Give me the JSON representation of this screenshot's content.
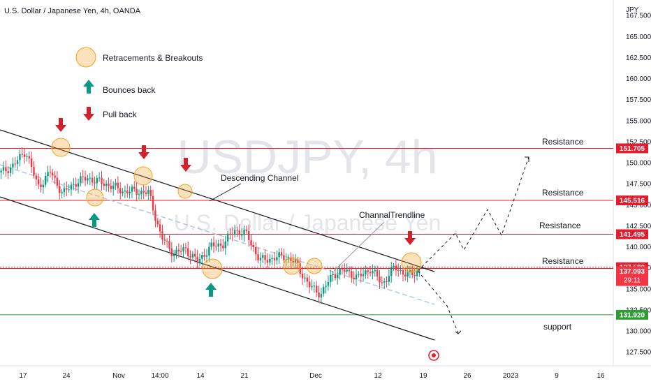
{
  "header": {
    "title": "U.S. Dollar / Japanese Yen, 4h, OANDA",
    "currency": "JPY"
  },
  "watermark": {
    "symbol": "USDJPY, 4h",
    "name": "U.S. Dollar / Japanese Yen"
  },
  "legend": {
    "items": [
      {
        "icon": "circle-icon",
        "label": "Retracements & Breakouts",
        "color": "#f5a020"
      },
      {
        "icon": "up-arrow-icon",
        "label": "Bounces back",
        "color": "#089981"
      },
      {
        "icon": "down-arrow-icon",
        "label": "Pull back",
        "color": "#d0212d"
      }
    ]
  },
  "annotations": {
    "descending_channel": "Descending Channel",
    "channel_trendline": "ChannalTrendline",
    "resistance": "Resistance",
    "support": "support"
  },
  "price_tags": {
    "r1": "151.705",
    "r2": "145.516",
    "r3": "141.495",
    "r4": "137.580",
    "last": "137.093",
    "countdown": "29:11",
    "s1": "131.920"
  },
  "colors": {
    "up": "#089981",
    "down": "#f23645",
    "resistance": "#e31c2e",
    "support": "#2f9c36",
    "highlight": "#f5a020",
    "channel": "#131722"
  },
  "chart_data": {
    "type": "candlestick",
    "title": "U.S. Dollar / Japanese Yen, 4h, OANDA",
    "ylabel": "JPY",
    "ylim": [
      126.0,
      168.5
    ],
    "y_ticks": [
      "127.500",
      "130.000",
      "132.500",
      "135.000",
      "137.500",
      "140.000",
      "142.500",
      "145.000",
      "147.500",
      "150.000",
      "152.500",
      "155.000",
      "157.500",
      "160.000",
      "162.500",
      "165.000",
      "167.500"
    ],
    "x_ticks": [
      "17",
      "24",
      "Nov",
      "14:00",
      "14",
      "21",
      "Dec",
      "12",
      "19",
      "26",
      "2023",
      "9",
      "16"
    ],
    "close_path": [
      {
        "date": "2022-10-17",
        "close": 148.8
      },
      {
        "date": "2022-10-19",
        "close": 149.7
      },
      {
        "date": "2022-10-21",
        "close": 151.4
      },
      {
        "date": "2022-10-21",
        "close": 147.1
      },
      {
        "date": "2022-10-24",
        "close": 148.9
      },
      {
        "date": "2022-10-26",
        "close": 146.3
      },
      {
        "date": "2022-10-28",
        "close": 147.6
      },
      {
        "date": "2022-11-01",
        "close": 148.2
      },
      {
        "date": "2022-11-02",
        "close": 147.7
      },
      {
        "date": "2022-11-03",
        "close": 147.2
      },
      {
        "date": "2022-11-04",
        "close": 146.6
      },
      {
        "date": "2022-11-07",
        "close": 146.6
      },
      {
        "date": "2022-11-09",
        "close": 146.4
      },
      {
        "date": "2022-11-10",
        "close": 141.2
      },
      {
        "date": "2022-11-11",
        "close": 139.2
      },
      {
        "date": "2022-11-14",
        "close": 139.7
      },
      {
        "date": "2022-11-15",
        "close": 138.2
      },
      {
        "date": "2022-11-16",
        "close": 140.0
      },
      {
        "date": "2022-11-18",
        "close": 140.3
      },
      {
        "date": "2022-11-21",
        "close": 142.0
      },
      {
        "date": "2022-11-22",
        "close": 141.4
      },
      {
        "date": "2022-11-24",
        "close": 138.4
      },
      {
        "date": "2022-11-25",
        "close": 138.6
      },
      {
        "date": "2022-11-28",
        "close": 138.9
      },
      {
        "date": "2022-11-30",
        "close": 138.0
      },
      {
        "date": "2022-12-01",
        "close": 135.4
      },
      {
        "date": "2022-12-02",
        "close": 134.4
      },
      {
        "date": "2022-12-05",
        "close": 136.8
      },
      {
        "date": "2022-12-07",
        "close": 137.2
      },
      {
        "date": "2022-12-09",
        "close": 136.3
      },
      {
        "date": "2022-12-12",
        "close": 137.4
      },
      {
        "date": "2022-12-13",
        "close": 135.6
      },
      {
        "date": "2022-12-15",
        "close": 137.6
      },
      {
        "date": "2022-12-16",
        "close": 136.6
      },
      {
        "date": "2022-12-19",
        "close": 137.093
      }
    ],
    "horizontal_levels": [
      {
        "label": "Resistance",
        "value": 151.705
      },
      {
        "label": "Resistance",
        "value": 145.516
      },
      {
        "label": "Resistance",
        "value": 141.495
      },
      {
        "label": "Resistance",
        "value": 137.58
      },
      {
        "label": "support",
        "value": 131.92
      }
    ],
    "last_price": 137.093
  }
}
